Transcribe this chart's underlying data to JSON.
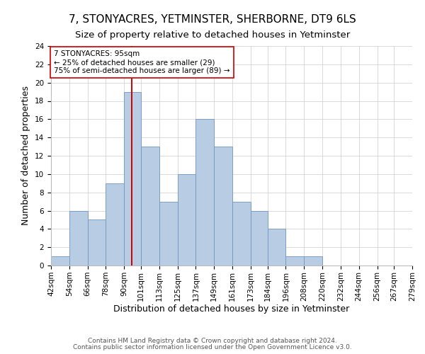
{
  "title": "7, STONYACRES, YETMINSTER, SHERBORNE, DT9 6LS",
  "subtitle": "Size of property relative to detached houses in Yetminster",
  "xlabel": "Distribution of detached houses by size in Yetminster",
  "ylabel": "Number of detached properties",
  "bin_labels": [
    "42sqm",
    "54sqm",
    "66sqm",
    "78sqm",
    "90sqm",
    "101sqm",
    "113sqm",
    "125sqm",
    "137sqm",
    "149sqm",
    "161sqm",
    "173sqm",
    "184sqm",
    "196sqm",
    "208sqm",
    "220sqm",
    "232sqm",
    "244sqm",
    "256sqm",
    "267sqm",
    "279sqm"
  ],
  "bin_edges": [
    42,
    54,
    66,
    78,
    90,
    101,
    113,
    125,
    137,
    149,
    161,
    173,
    184,
    196,
    208,
    220,
    232,
    244,
    256,
    267,
    279
  ],
  "counts": [
    1,
    6,
    5,
    9,
    19,
    13,
    7,
    10,
    16,
    13,
    7,
    6,
    4,
    1,
    1,
    0,
    0,
    0,
    0,
    0
  ],
  "bar_color": "#b8cce4",
  "bar_edge_color": "#7096c0",
  "property_size": 95,
  "vline_color": "#cc0000",
  "annotation_text": "7 STONYACRES: 95sqm\n← 25% of detached houses are smaller (29)\n75% of semi-detached houses are larger (89) →",
  "annotation_box_color": "#ffffff",
  "annotation_box_edge": "#cc0000",
  "ylim": [
    0,
    24
  ],
  "yticks": [
    0,
    2,
    4,
    6,
    8,
    10,
    12,
    14,
    16,
    18,
    20,
    22,
    24
  ],
  "footer_line1": "Contains HM Land Registry data © Crown copyright and database right 2024.",
  "footer_line2": "Contains public sector information licensed under the Open Government Licence v3.0.",
  "title_fontsize": 11,
  "subtitle_fontsize": 9.5,
  "axis_label_fontsize": 9,
  "tick_fontsize": 7.5,
  "annotation_fontsize": 7.5,
  "footer_fontsize": 6.5,
  "background_color": "#ffffff",
  "grid_color": "#cccccc"
}
